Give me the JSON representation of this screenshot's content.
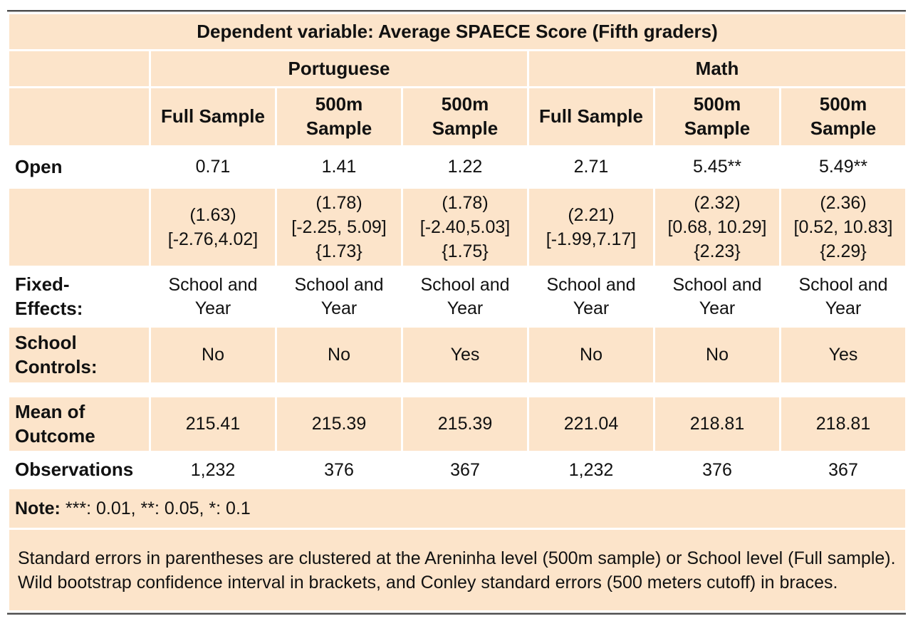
{
  "table": {
    "title": "Dependent variable: Average SPAECE Score (Fifth graders)",
    "groups": [
      "Portuguese",
      "Math"
    ],
    "column_headers": [
      "Full Sample",
      "500m\nSample",
      "500m\nSample",
      "Full Sample",
      "500m\nSample",
      "500m\nSample"
    ],
    "coef_row": {
      "label": "Open",
      "values": [
        "0.71",
        "1.41",
        "1.22",
        "2.71",
        "5.45**",
        "5.49**"
      ]
    },
    "se_row": {
      "values": [
        "(1.63)\n[-2.76,4.02]",
        "(1.78)\n[-2.25, 5.09]\n{1.73}",
        "(1.78)\n[-2.40,5.03]\n{1.75}",
        "(2.21)\n[-1.99,7.17]",
        "(2.32)\n[0.68, 10.29]\n{2.23}",
        "(2.36)\n[0.52, 10.83]\n{2.29}"
      ]
    },
    "fixed_effects_row": {
      "label": "Fixed-\nEffects:",
      "values": [
        "School and\nYear",
        "School and\nYear",
        "School and\nYear",
        "School and\nYear",
        "School and\nYear",
        "School and\nYear"
      ]
    },
    "school_controls_row": {
      "label": "School\nControls:",
      "values": [
        "No",
        "No",
        "Yes",
        "No",
        "No",
        "Yes"
      ]
    },
    "mean_row": {
      "label": "Mean of\nOutcome",
      "values": [
        "215.41",
        "215.39",
        "215.39",
        "221.04",
        "218.81",
        "218.81"
      ]
    },
    "obs_row": {
      "label": "Observations",
      "values": [
        "1,232",
        "376",
        "367",
        "1,232",
        "376",
        "367"
      ]
    },
    "note": {
      "label": "Note:",
      "text": "***: 0.01, **: 0.05, *: 0.1"
    },
    "footnote": "Standard errors in parentheses are clustered at the Areninha level (500m sample) or School level (Full sample). Wild bootstrap confidence interval in brackets, and Conley standard errors (500 meters cutoff) in braces.",
    "colors": {
      "cell_background": "#fce4ca",
      "rule": "#4c4c4c",
      "text": "#111111"
    }
  }
}
